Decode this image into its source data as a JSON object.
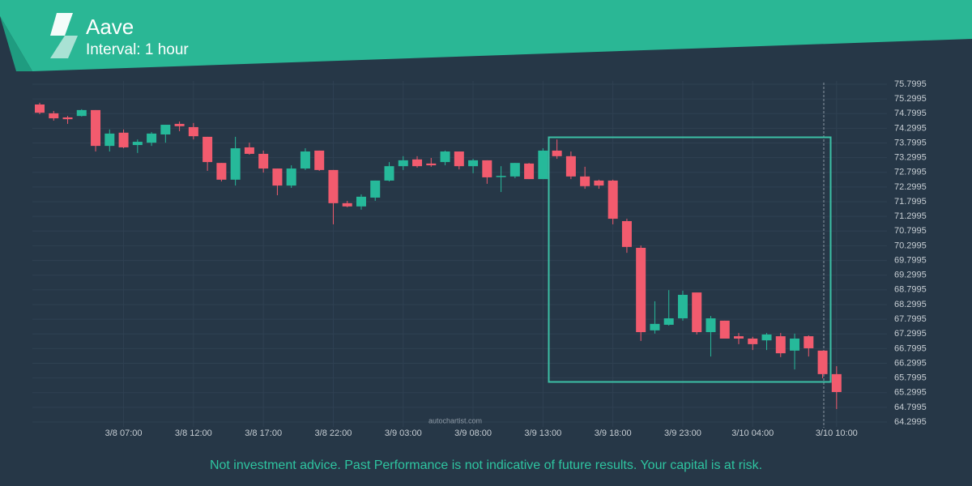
{
  "chart_data": {
    "type": "candlestick",
    "title": "Aave",
    "subtitle": "Interval: 1 hour",
    "watermark": "autochartist.com",
    "footer": "Not investment advice. Past Performance is not indicative of future results. Your capital is at risk.",
    "categories": [
      null,
      null,
      null,
      null,
      null,
      null,
      "3/8 07:00",
      null,
      null,
      null,
      null,
      "3/8 12:00",
      null,
      null,
      null,
      null,
      "3/8 17:00",
      null,
      null,
      null,
      null,
      "3/8 22:00",
      null,
      null,
      null,
      null,
      "3/9 03:00",
      null,
      null,
      null,
      null,
      "3/9 08:00",
      null,
      null,
      null,
      null,
      "3/9 13:00",
      null,
      null,
      null,
      null,
      "3/9 18:00",
      null,
      null,
      null,
      null,
      "3/9 23:00",
      null,
      null,
      null,
      null,
      "3/10 04:00",
      null,
      null,
      null,
      null,
      null,
      "3/10 10:00"
    ],
    "open": [
      75.11,
      74.81,
      74.67,
      74.72,
      74.92,
      73.7,
      74.15,
      73.73,
      73.81,
      74.09,
      74.45,
      74.34,
      74.01,
      73.12,
      72.55,
      73.65,
      73.43,
      72.93,
      72.35,
      72.93,
      73.54,
      72.88,
      71.75,
      71.64,
      71.94,
      72.52,
      73.01,
      73.24,
      73.1,
      73.15,
      73.51,
      73.01,
      73.21,
      72.66,
      72.66,
      73.1,
      72.57,
      73.54,
      73.35,
      72.66,
      72.52,
      72.52,
      71.14,
      70.23,
      67.42,
      67.61,
      67.83,
      68.71,
      67.36,
      67.75,
      67.22,
      67.14,
      67.08,
      67.22,
      66.73,
      67.22,
      66.73,
      65.93
    ],
    "high": [
      75.17,
      74.89,
      74.72,
      74.95,
      74.92,
      74.26,
      74.26,
      73.92,
      74.17,
      74.42,
      74.53,
      74.48,
      74.01,
      73.12,
      74.01,
      73.81,
      73.54,
      72.93,
      73.04,
      73.62,
      73.54,
      72.88,
      71.83,
      72.05,
      72.52,
      73.15,
      73.35,
      73.35,
      73.29,
      73.54,
      73.51,
      73.26,
      73.21,
      73.01,
      73.12,
      73.12,
      73.62,
      73.92,
      73.51,
      72.99,
      72.55,
      72.55,
      71.22,
      70.31,
      68.41,
      68.79,
      68.77,
      68.71,
      67.91,
      67.75,
      67.33,
      67.2,
      67.33,
      67.33,
      67.31,
      67.25,
      66.73,
      66.2
    ],
    "low": [
      74.78,
      74.56,
      74.45,
      74.7,
      73.51,
      73.51,
      73.62,
      73.46,
      73.7,
      73.81,
      74.2,
      73.92,
      72.85,
      72.49,
      72.35,
      73.4,
      72.79,
      72.02,
      72.27,
      72.88,
      72.85,
      71.03,
      71.61,
      71.53,
      71.83,
      72.49,
      72.88,
      72.96,
      72.99,
      73.04,
      72.9,
      72.77,
      72.41,
      72.13,
      72.6,
      72.57,
      72.57,
      73.26,
      72.57,
      72.24,
      72.24,
      71.03,
      70.06,
      67.06,
      67.31,
      67.58,
      67.75,
      67.28,
      66.53,
      67.14,
      66.95,
      66.75,
      66.75,
      66.51,
      66.09,
      66.53,
      65.79,
      64.74
    ],
    "close": [
      74.83,
      74.64,
      74.61,
      74.92,
      73.7,
      74.12,
      73.65,
      73.84,
      74.12,
      74.42,
      74.37,
      74.03,
      73.15,
      72.55,
      73.62,
      73.43,
      72.93,
      72.35,
      72.93,
      73.51,
      72.88,
      71.75,
      71.64,
      71.97,
      72.52,
      73.01,
      73.21,
      73.01,
      73.04,
      73.51,
      73.01,
      73.21,
      72.63,
      72.68,
      73.12,
      72.57,
      73.54,
      73.35,
      72.66,
      72.33,
      72.35,
      71.22,
      70.26,
      67.36,
      67.64,
      67.83,
      68.63,
      67.36,
      67.83,
      67.14,
      67.14,
      66.95,
      67.28,
      66.64,
      67.14,
      66.81,
      65.93,
      65.32
    ],
    "up_color": "#26b99a",
    "down_color": "#f25b6e",
    "ylim": [
      64.2995,
      75.7995
    ],
    "yticks": [
      64.2995,
      64.7995,
      65.2995,
      65.7995,
      66.2995,
      66.7995,
      67.2995,
      67.7995,
      68.2995,
      68.7995,
      69.2995,
      69.7995,
      70.2995,
      70.7995,
      71.2995,
      71.7995,
      72.2995,
      72.7995,
      73.2995,
      73.7995,
      74.2995,
      74.7995,
      75.2995,
      75.7995
    ],
    "grid": true
  }
}
